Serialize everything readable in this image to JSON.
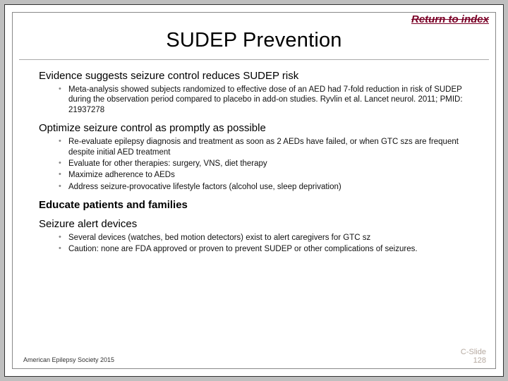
{
  "returnLink": "Return to index",
  "title": "SUDEP Prevention",
  "sections": [
    {
      "heading": "Evidence suggests seizure control reduces SUDEP risk",
      "bold": false,
      "bullets": [
        "Meta-analysis showed subjects randomized to effective dose of an AED had 7-fold reduction in risk of SUDEP during the observation period compared to placebo in add-on studies. Ryvlin et al. Lancet neurol. 2011; PMID: 21937278"
      ]
    },
    {
      "heading": "Optimize seizure control as promptly as possible",
      "bold": false,
      "bullets": [
        "Re-evaluate epilepsy diagnosis and treatment as soon as 2 AEDs have failed, or when GTC szs are frequent despite initial AED treatment",
        "Evaluate for other therapies: surgery, VNS, diet therapy",
        "Maximize adherence to AEDs",
        "Address seizure-provocative lifestyle factors (alcohol use, sleep deprivation)"
      ]
    },
    {
      "heading": "Educate patients and families",
      "bold": true,
      "bullets": []
    },
    {
      "heading": "Seizure alert devices",
      "bold": false,
      "bullets": [
        "Several devices (watches, bed motion detectors) exist to alert caregivers for GTC sz",
        "Caution: none are FDA approved or proven to prevent SUDEP or other complications of seizures."
      ]
    }
  ],
  "footerLeft": "American Epilepsy Society 2015",
  "footerRight": {
    "line1": "C-Slide",
    "line2": "128"
  }
}
